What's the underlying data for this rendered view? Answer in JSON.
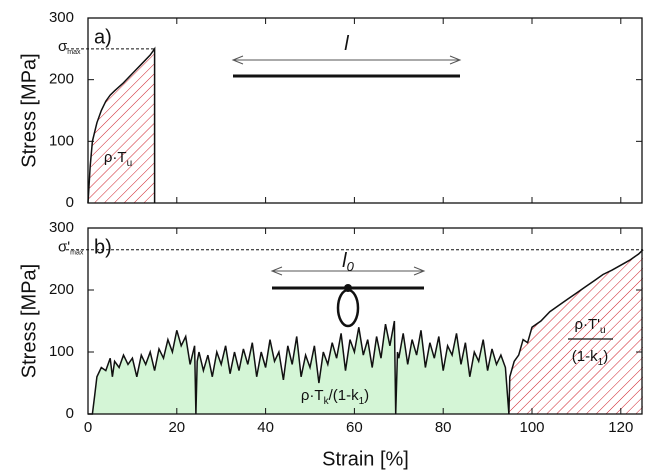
{
  "chart_data": [
    {
      "type": "area",
      "panel_label": "a)",
      "ylabel": "Stress [MPa]",
      "xlim": [
        0,
        125
      ],
      "ylim": [
        0,
        300
      ],
      "yticks": [
        0,
        100,
        200,
        300
      ],
      "xticks": [
        0,
        20,
        40,
        60,
        80,
        100,
        120
      ],
      "xtick_labels_shown": false,
      "hline": {
        "value": 250,
        "x_end": 15,
        "label": {
          "base": "σ",
          "sub": "max"
        }
      },
      "specimen": {
        "label": "l",
        "loop": false
      },
      "annotations": [
        {
          "segments": [
            {
              "text": "ρ·T"
            },
            {
              "text": "u",
              "sub": true
            }
          ]
        }
      ],
      "series": [
        {
          "color": "#d0202a",
          "fill": "hatch",
          "x": [
            0,
            0.5,
            1,
            2,
            3,
            4,
            5,
            6,
            8,
            10,
            12,
            14,
            15,
            15
          ],
          "values": [
            0,
            60,
            100,
            130,
            150,
            165,
            175,
            182,
            195,
            210,
            225,
            240,
            250,
            0
          ]
        }
      ]
    },
    {
      "type": "area",
      "panel_label": "b)",
      "ylabel": "Stress [MPa]",
      "xlabel": "Strain [%]",
      "xlim": [
        0,
        125
      ],
      "ylim": [
        0,
        300
      ],
      "yticks": [
        0,
        100,
        200,
        300
      ],
      "xticks": [
        0,
        20,
        40,
        60,
        80,
        100,
        120
      ],
      "xtick_labels_shown": true,
      "hline": {
        "value": 265,
        "label": {
          "base": "σ'",
          "sub": "max"
        }
      },
      "specimen": {
        "label": "l",
        "label_sub": "0",
        "loop": true
      },
      "annotations": [
        {
          "segments": [
            {
              "text": "ρ·T"
            },
            {
              "text": "k",
              "sub": true
            },
            {
              "text": "/(1-k"
            },
            {
              "text": "1",
              "sub": true
            },
            {
              "text": ")"
            }
          ]
        },
        {
          "segments": [
            {
              "text": "ρ·T'"
            },
            {
              "text": "u",
              "sub": true
            }
          ]
        },
        {
          "segments": [
            {
              "text": "(1-k"
            },
            {
              "text": "1",
              "sub": true
            },
            {
              "text": ")"
            }
          ]
        }
      ],
      "series": [
        {
          "color": "#d4f5d6",
          "fill": "solid",
          "x": [
            0,
            1,
            1.5,
            2,
            3,
            4,
            5,
            5.5,
            6,
            7,
            8,
            9,
            10,
            11,
            12,
            13,
            14,
            15,
            16,
            17,
            18,
            19,
            20,
            21,
            22,
            23,
            24,
            24.3,
            24.6,
            25,
            26,
            27,
            28,
            29,
            30,
            31,
            32,
            33,
            34,
            35,
            36,
            37,
            38,
            39,
            40,
            41,
            42,
            43,
            44,
            45,
            46,
            47,
            48,
            49,
            50,
            51,
            52,
            53,
            54,
            55,
            56,
            57,
            58,
            59,
            60,
            61,
            62,
            63,
            64,
            65,
            66,
            67,
            68,
            69,
            69.3,
            69.7,
            70,
            71,
            72,
            73,
            74,
            75,
            76,
            77,
            78,
            79,
            80,
            81,
            82,
            83,
            84,
            85,
            86,
            87,
            88,
            89,
            90,
            91,
            92,
            93,
            94,
            94.8
          ],
          "values": [
            0,
            0,
            30,
            60,
            75,
            70,
            90,
            60,
            85,
            75,
            95,
            80,
            90,
            60,
            95,
            80,
            100,
            70,
            105,
            90,
            120,
            100,
            135,
            110,
            125,
            80,
            110,
            0,
            85,
            100,
            70,
            95,
            60,
            100,
            80,
            110,
            65,
            100,
            70,
            105,
            80,
            115,
            60,
            100,
            75,
            120,
            85,
            100,
            55,
            110,
            80,
            125,
            60,
            95,
            75,
            110,
            50,
            100,
            80,
            115,
            90,
            130,
            70,
            120,
            100,
            140,
            95,
            120,
            75,
            125,
            90,
            145,
            110,
            150,
            0,
            100,
            90,
            130,
            80,
            120,
            95,
            135,
            75,
            115,
            90,
            125,
            70,
            110,
            95,
            130,
            80,
            115,
            60,
            100,
            85,
            120,
            70,
            105,
            80,
            95,
            75,
            0
          ]
        },
        {
          "color": "#d0202a",
          "fill": "hatch",
          "x": [
            94.8,
            95,
            96,
            97,
            98,
            99,
            100,
            102,
            104,
            106,
            108,
            110,
            112,
            114,
            116,
            118,
            120,
            122,
            124,
            125
          ],
          "values": [
            0,
            60,
            85,
            95,
            120,
            115,
            140,
            150,
            165,
            175,
            185,
            195,
            205,
            215,
            225,
            232,
            240,
            248,
            258,
            265
          ]
        }
      ]
    }
  ]
}
